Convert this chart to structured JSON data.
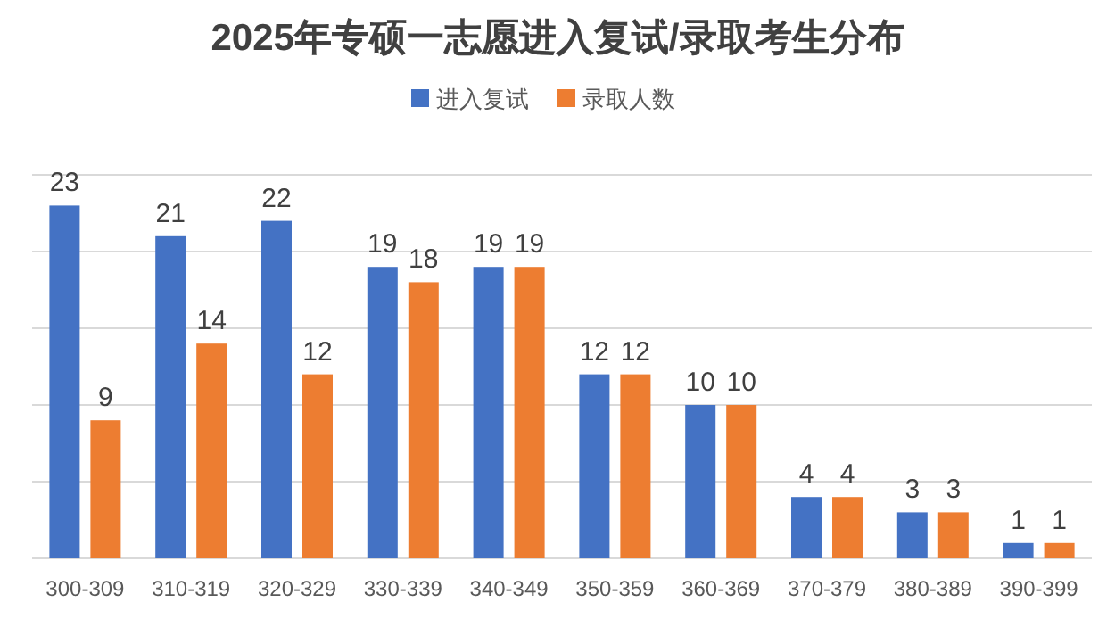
{
  "chart_data": {
    "type": "bar",
    "title": "2025年专硕一志愿进入复试/录取考生分布",
    "categories": [
      "300-309",
      "310-319",
      "320-329",
      "330-339",
      "340-349",
      "350-359",
      "360-369",
      "370-379",
      "380-389",
      "390-399"
    ],
    "series": [
      {
        "name": "进入复试",
        "color": "#4472c4",
        "values": [
          23,
          21,
          22,
          19,
          19,
          12,
          10,
          4,
          3,
          1
        ]
      },
      {
        "name": "录取人数",
        "color": "#ed7d31",
        "values": [
          9,
          14,
          12,
          18,
          19,
          12,
          10,
          4,
          3,
          1
        ]
      }
    ],
    "ylim": [
      0,
      25
    ],
    "yticks": [
      {
        "value": 0,
        "label": null
      },
      {
        "value": 5,
        "label": null
      },
      {
        "value": 10,
        "label": null
      },
      {
        "value": 15,
        "label": null
      },
      {
        "value": 20,
        "label": null
      },
      {
        "value": 25,
        "label": null
      }
    ],
    "grid": "y",
    "legend": "top",
    "data_labels": true,
    "tick_labels": "x"
  }
}
